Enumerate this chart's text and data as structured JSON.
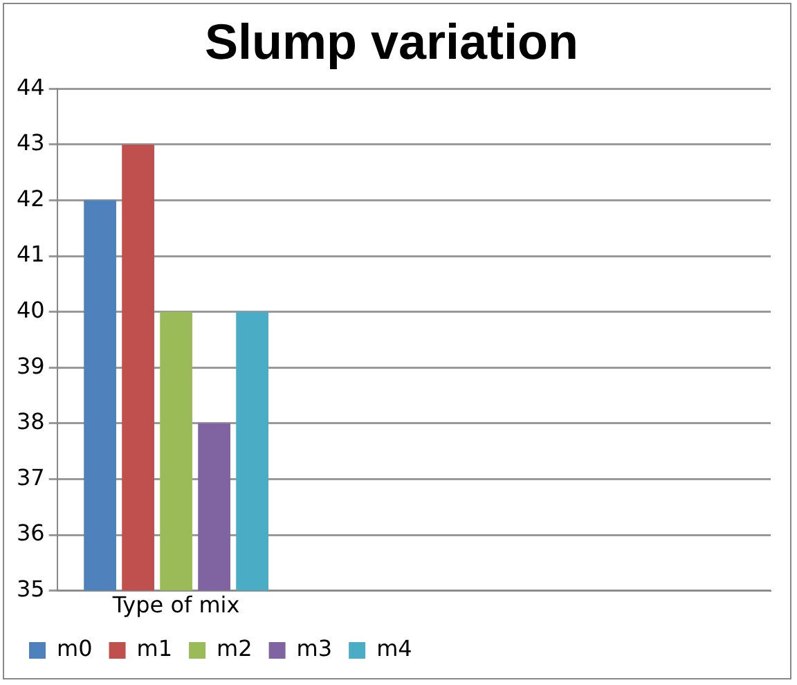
{
  "chart_data": {
    "type": "bar",
    "title": "Slump variation",
    "categories": [
      "Type of mix",
      null,
      null
    ],
    "series": [
      {
        "name": "m0",
        "color": "#4f81bd",
        "values": [
          42,
          null,
          null
        ]
      },
      {
        "name": "m1",
        "color": "#c0504d",
        "values": [
          43,
          null,
          null
        ]
      },
      {
        "name": "m2",
        "color": "#9bbb59",
        "values": [
          40,
          null,
          null
        ]
      },
      {
        "name": "m3",
        "color": "#8064a2",
        "values": [
          38,
          null,
          null
        ]
      },
      {
        "name": "m4",
        "color": "#4bacc6",
        "values": [
          40,
          null,
          null
        ]
      }
    ],
    "ylim": [
      35,
      44
    ],
    "yticks": [
      35,
      36,
      37,
      38,
      39,
      40,
      41,
      42,
      43,
      44
    ],
    "grid": "y",
    "legend": "bottom left"
  }
}
